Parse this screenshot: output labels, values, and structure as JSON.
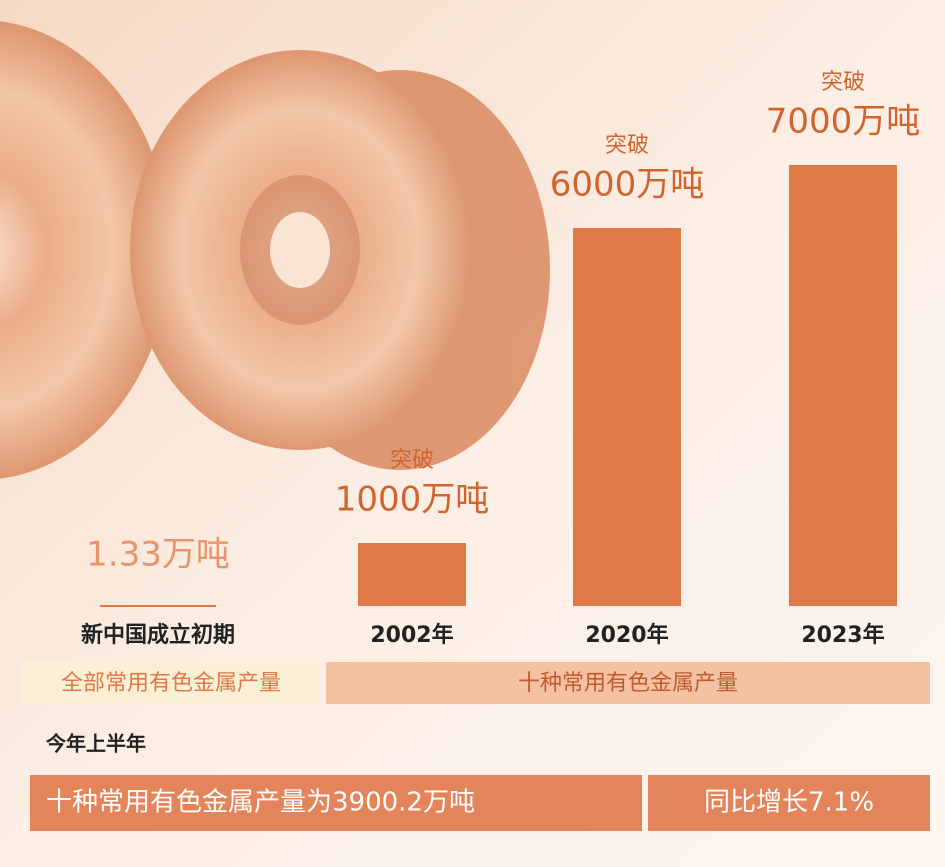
{
  "chart_data": {
    "type": "bar",
    "categories": [
      "新中国成立初期",
      "2002年",
      "2020年",
      "2023年"
    ],
    "values": [
      1.33,
      1000,
      6000,
      7000
    ],
    "value_labels": [
      "1.33万吨",
      "1000万吨",
      "6000万吨",
      "7000万吨"
    ],
    "value_prefixes": [
      null,
      "突破",
      "突破",
      "突破"
    ],
    "color": "#e07848",
    "ylim": [
      0,
      7000
    ],
    "groups": [
      "全部常用有色金属产量",
      "十种常用有色金属产量"
    ],
    "footer": {
      "heading": "今年上半年",
      "statement": "十种常用有色金属产量为3900.2万吨",
      "growth": "同比增长7.1%"
    }
  }
}
